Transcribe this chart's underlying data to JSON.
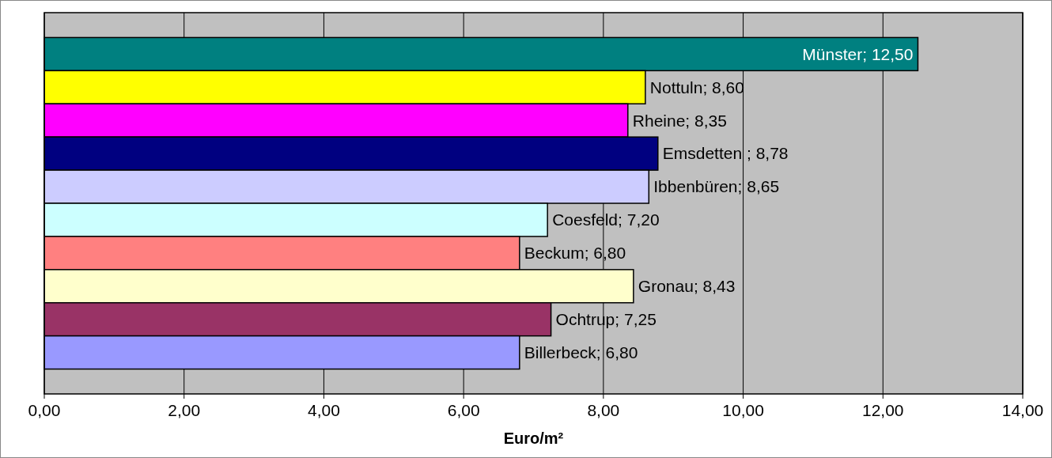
{
  "chart_data": {
    "type": "bar",
    "orientation": "horizontal",
    "xlabel": "Euro/m²",
    "categories": [
      null,
      null,
      null,
      null,
      null,
      null,
      null,
      null,
      null,
      null
    ],
    "values": [
      12.5,
      8.6,
      8.35,
      8.78,
      8.65,
      7.2,
      6.8,
      8.43,
      7.25,
      6.8
    ],
    "colors": [
      "#008080",
      "#ffff00",
      "#ff00ff",
      "#000080",
      "#ccccff",
      "#ccffff",
      "#ff8080",
      "#ffffcc",
      "#993366",
      "#9999ff"
    ],
    "value_labels": [
      "Münster; 12,50",
      "Nottuln; 8,60",
      "Rheine; 8,35",
      "Emsdetten ; 8,78",
      "Ibbenbüren; 8,65",
      "Coesfeld; 7,20",
      "Beckum; 6,80",
      "Gronau; 8,43",
      "Ochtrup; 7,25",
      "Billerbeck; 6,80"
    ],
    "xlim": [
      0,
      14
    ],
    "xticks": [
      {
        "value": 0,
        "label": "0,00"
      },
      {
        "value": 2,
        "label": "2,00"
      },
      {
        "value": 4,
        "label": "4,00"
      },
      {
        "value": 6,
        "label": "6,00"
      },
      {
        "value": 8,
        "label": "8,00"
      },
      {
        "value": 10,
        "label": "10,00"
      },
      {
        "value": 12,
        "label": "12,00"
      },
      {
        "value": 14,
        "label": "14,00"
      }
    ],
    "grid": "x"
  }
}
